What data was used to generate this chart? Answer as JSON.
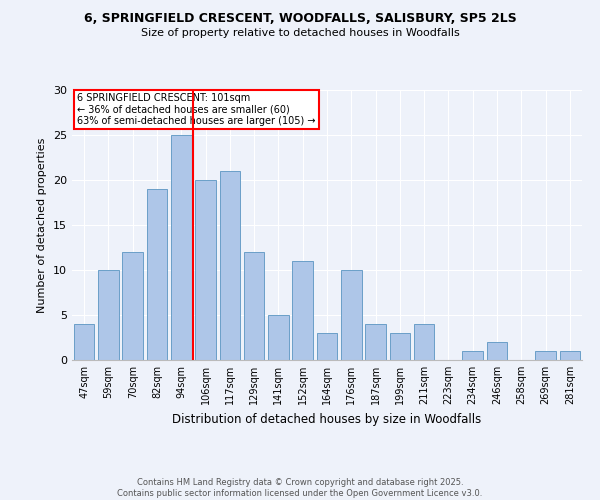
{
  "title1": "6, SPRINGFIELD CRESCENT, WOODFALLS, SALISBURY, SP5 2LS",
  "title2": "Size of property relative to detached houses in Woodfalls",
  "xlabel": "Distribution of detached houses by size in Woodfalls",
  "ylabel": "Number of detached properties",
  "categories": [
    "47sqm",
    "59sqm",
    "70sqm",
    "82sqm",
    "94sqm",
    "106sqm",
    "117sqm",
    "129sqm",
    "141sqm",
    "152sqm",
    "164sqm",
    "176sqm",
    "187sqm",
    "199sqm",
    "211sqm",
    "223sqm",
    "234sqm",
    "246sqm",
    "258sqm",
    "269sqm",
    "281sqm"
  ],
  "values": [
    4,
    10,
    12,
    19,
    25,
    20,
    21,
    12,
    5,
    11,
    3,
    10,
    4,
    3,
    4,
    0,
    1,
    2,
    0,
    1,
    1
  ],
  "bar_color": "#aec6e8",
  "bar_edge_color": "#6a9fc8",
  "reference_line_label": "6 SPRINGFIELD CRESCENT: 101sqm",
  "annotation_line1": "← 36% of detached houses are smaller (60)",
  "annotation_line2": "63% of semi-detached houses are larger (105) →",
  "box_color": "#cc0000",
  "ylim": [
    0,
    30
  ],
  "yticks": [
    0,
    5,
    10,
    15,
    20,
    25,
    30
  ],
  "footer1": "Contains HM Land Registry data © Crown copyright and database right 2025.",
  "footer2": "Contains public sector information licensed under the Open Government Licence v3.0.",
  "bg_color": "#eef2fa"
}
